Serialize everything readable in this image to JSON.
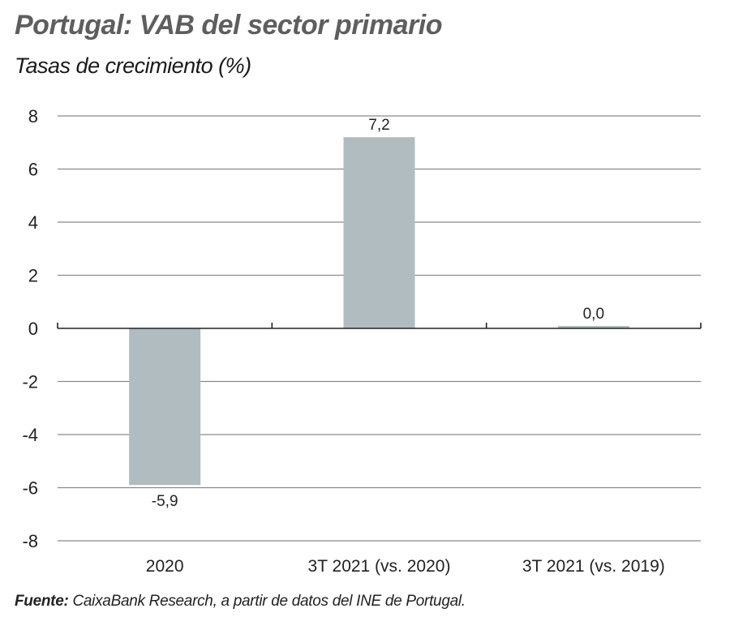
{
  "header": {
    "title": "Portugal: VAB del sector primario",
    "subtitle": "Tasas de crecimiento (%)"
  },
  "footer": {
    "source_label": "Fuente:",
    "source_text": " CaixaBank Research, a partir de datos del INE de Portugal."
  },
  "chart_data": {
    "type": "bar",
    "title": "Portugal: VAB del sector primario",
    "subtitle": "Tasas de crecimiento (%)",
    "xlabel": "",
    "ylabel": "",
    "categories": [
      "2020",
      "3T 2021 (vs. 2020)",
      "3T 2021 (vs. 2019)"
    ],
    "values": [
      -5.9,
      7.2,
      0.0
    ],
    "data_labels": [
      "-5,9",
      "7,2",
      "0,0"
    ],
    "ylim": [
      -8,
      8
    ],
    "yticks": [
      8,
      6,
      4,
      2,
      0,
      -2,
      -4,
      -6,
      -8
    ],
    "ytick_labels": [
      "8",
      "6",
      "4",
      "2",
      "0",
      "-2",
      "-4",
      "-6",
      "-8"
    ],
    "grid": true,
    "legend": "none",
    "colors": {
      "bar": "#b0bcc0",
      "grid": "#8a8a8a",
      "axis": "#222222",
      "text": "#222222"
    }
  }
}
